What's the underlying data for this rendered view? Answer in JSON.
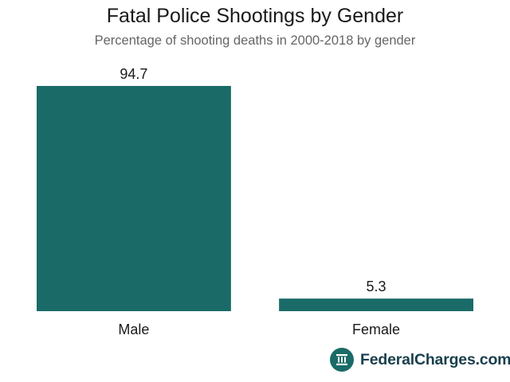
{
  "chart_data": {
    "type": "bar",
    "title": "Fatal Police Shootings by Gender",
    "subtitle": "Percentage of shooting deaths in 2000-2018 by gender",
    "categories": [
      "Male",
      "Female"
    ],
    "values": [
      94.7,
      5.3
    ],
    "data_labels": [
      "94.7",
      "5.3"
    ],
    "xlabel": "",
    "ylabel": "",
    "ylim": [
      0,
      94.7
    ],
    "grid": false,
    "legend": "none"
  },
  "colors": {
    "bar": "#1a6b67",
    "brand_icon": "#1a6b67",
    "brand_text": "#1a3f4d"
  },
  "brand": {
    "name": "FederalCharges.com",
    "icon": "courthouse-pillar-icon"
  }
}
